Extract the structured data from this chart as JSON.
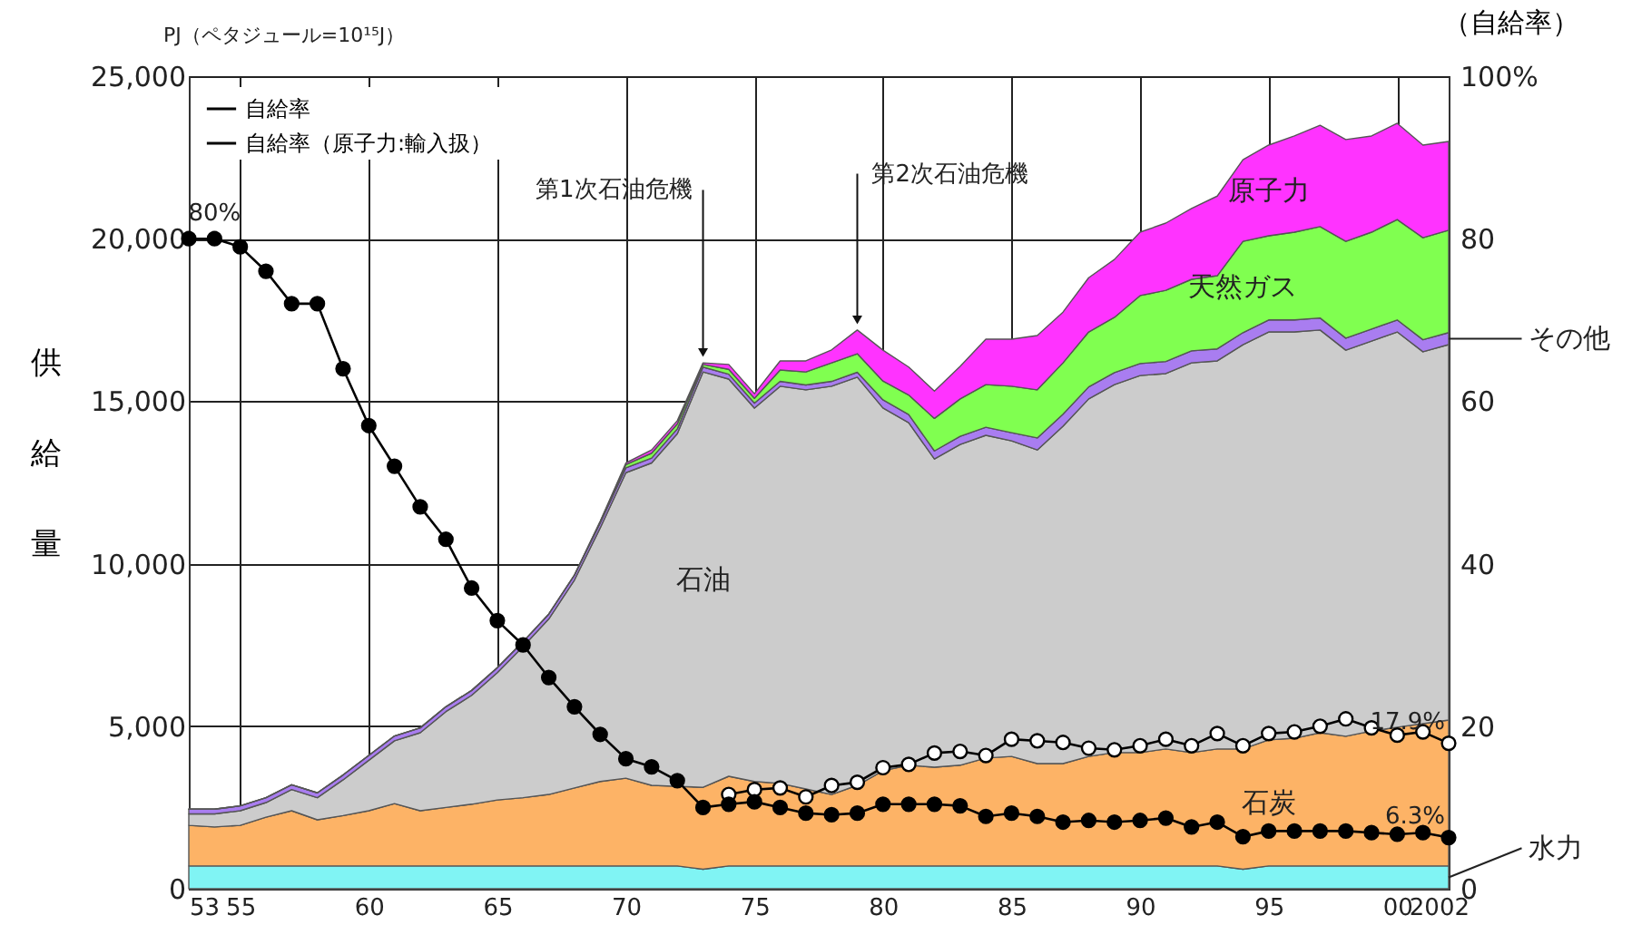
{
  "chart_data": {
    "type": "area",
    "stacked": true,
    "ylabel": "供給量",
    "y2label": "（自給率）",
    "annotations": [
      "PJ（ペタジュール=10¹⁵J）",
      {
        "text": "第1次石油危機",
        "x": 1973,
        "y": 16200
      },
      {
        "text": "第2次石油危機",
        "x": 1979,
        "y": 17200
      }
    ],
    "x": [
      1953,
      1954,
      1955,
      1956,
      1957,
      1958,
      1959,
      1960,
      1961,
      1962,
      1963,
      1964,
      1965,
      1966,
      1967,
      1968,
      1969,
      1970,
      1971,
      1972,
      1973,
      1974,
      1975,
      1976,
      1977,
      1978,
      1979,
      1980,
      1981,
      1982,
      1983,
      1984,
      1985,
      1986,
      1987,
      1988,
      1989,
      1990,
      1991,
      1992,
      1993,
      1994,
      1995,
      1996,
      1997,
      1998,
      1999,
      2000,
      2001,
      2002
    ],
    "xlim": [
      1953,
      2002
    ],
    "xticks": [
      {
        "value": 1953,
        "label": "53"
      },
      {
        "value": 1955,
        "label": "55"
      },
      {
        "value": 1960,
        "label": "60"
      },
      {
        "value": 1965,
        "label": "65"
      },
      {
        "value": 1970,
        "label": "70"
      },
      {
        "value": 1975,
        "label": "75"
      },
      {
        "value": 1980,
        "label": "80"
      },
      {
        "value": 1985,
        "label": "85"
      },
      {
        "value": 1990,
        "label": "90"
      },
      {
        "value": 1995,
        "label": "95"
      },
      {
        "value": 2000,
        "label": "00"
      },
      2002
    ],
    "ylim": [
      0,
      25000
    ],
    "yticks": [
      0,
      {
        "value": 5000,
        "label": "5,000"
      },
      {
        "value": 10000,
        "label": "10,000"
      },
      {
        "value": 15000,
        "label": "15,000"
      },
      {
        "value": 20000,
        "label": "20,000"
      },
      {
        "value": 25000,
        "label": "25,000"
      }
    ],
    "y2lim": [
      0,
      100
    ],
    "y2ticks": [
      0,
      20,
      40,
      60,
      80,
      {
        "value": 100,
        "label": "100%"
      }
    ],
    "grid": true,
    "legend": "top left",
    "series": [
      {
        "name": "水力",
        "color": "#80f4f4",
        "values": [
          700,
          700,
          700,
          700,
          700,
          700,
          700,
          700,
          700,
          700,
          700,
          700,
          700,
          700,
          700,
          700,
          700,
          700,
          700,
          700,
          600,
          700,
          700,
          700,
          700,
          700,
          700,
          700,
          700,
          700,
          700,
          700,
          700,
          700,
          700,
          700,
          700,
          700,
          700,
          700,
          700,
          600,
          700,
          700,
          700,
          700,
          700,
          700,
          700,
          700
        ]
      },
      {
        "name": "石炭",
        "color": "#fdb366",
        "values": [
          1250,
          1200,
          1250,
          1500,
          1700,
          1420,
          1550,
          1700,
          1920,
          1700,
          1800,
          1900,
          2030,
          2100,
          2200,
          2400,
          2600,
          2700,
          2480,
          2450,
          2520,
          2760,
          2600,
          2540,
          2370,
          2200,
          2480,
          2930,
          3100,
          3040,
          3100,
          3320,
          3370,
          3150,
          3150,
          3370,
          3490,
          3490,
          3600,
          3490,
          3600,
          3700,
          3880,
          3930,
          4100,
          3990,
          4150,
          4270,
          4380,
          4490
        ]
      },
      {
        "name": "石油",
        "color": "#cccccc",
        "values": [
          350,
          400,
          450,
          450,
          650,
          680,
          1100,
          1550,
          1930,
          2400,
          2950,
          3350,
          3920,
          4650,
          5400,
          6400,
          7800,
          9400,
          9920,
          10850,
          12780,
          12220,
          11490,
          12220,
          12280,
          12560,
          12560,
          11160,
          10540,
          9480,
          9870,
          9930,
          9710,
          9650,
          10380,
          11000,
          11320,
          11600,
          11550,
          11990,
          11940,
          12440,
          12550,
          12500,
          12390,
          11880,
          12000,
          12160,
          11440,
          11550
        ]
      },
      {
        "name": "その他",
        "color": "#a97df0",
        "values": [
          150,
          150,
          150,
          150,
          150,
          150,
          150,
          150,
          150,
          150,
          150,
          150,
          150,
          150,
          150,
          150,
          150,
          150,
          150,
          150,
          150,
          150,
          150,
          150,
          150,
          150,
          150,
          250,
          250,
          250,
          250,
          250,
          250,
          370,
          370,
          370,
          370,
          370,
          370,
          370,
          370,
          370,
          370,
          370,
          370,
          370,
          370,
          370,
          370,
          370
        ]
      },
      {
        "name": "天然ガス",
        "color": "#80ff50",
        "values": [
          0,
          0,
          0,
          0,
          0,
          0,
          0,
          0,
          0,
          0,
          0,
          0,
          0,
          0,
          0,
          0,
          50,
          100,
          150,
          150,
          80,
          150,
          150,
          350,
          400,
          570,
          570,
          580,
          600,
          1000,
          1150,
          1310,
          1430,
          1480,
          1580,
          1690,
          1700,
          2090,
          2190,
          2200,
          2250,
          2810,
          2590,
          2700,
          2810,
          2980,
          2980,
          3090,
          3140,
          3150
        ]
      },
      {
        "name": "原子力",
        "color": "#ff33ff",
        "values": [
          0,
          0,
          0,
          0,
          0,
          0,
          0,
          0,
          0,
          0,
          0,
          0,
          0,
          0,
          0,
          0,
          0,
          50,
          100,
          100,
          50,
          150,
          140,
          280,
          340,
          400,
          730,
          950,
          860,
          840,
          1000,
          1400,
          1450,
          1670,
          1560,
          1670,
          1780,
          1950,
          2070,
          2180,
          2450,
          2510,
          2790,
          2960,
          3120,
          3130,
          2960,
          2960,
          2850,
          2730
        ]
      },
      {
        "name": "自給率",
        "type": "line",
        "axis": "y2",
        "marker": "circle",
        "color": "#000000",
        "values": [
          null,
          null,
          null,
          null,
          null,
          null,
          null,
          null,
          null,
          null,
          null,
          null,
          null,
          null,
          null,
          null,
          null,
          null,
          null,
          null,
          null,
          11.6,
          12.2,
          12.4,
          11.3,
          12.7,
          13.1,
          14.9,
          15.3,
          16.7,
          16.9,
          16.4,
          18.4,
          18.2,
          18,
          17.3,
          17.1,
          17.6,
          18.4,
          17.6,
          19.1,
          17.6,
          19.1,
          19.3,
          20,
          20.9,
          19.8,
          18.9,
          19.3,
          17.9
        ],
        "value_labels": [
          null,
          null,
          null,
          null,
          null,
          null,
          null,
          null,
          null,
          null,
          null,
          null,
          null,
          null,
          null,
          null,
          null,
          null,
          null,
          null,
          null,
          null,
          null,
          null,
          null,
          null,
          null,
          null,
          null,
          null,
          null,
          null,
          null,
          null,
          null,
          null,
          null,
          null,
          null,
          null,
          null,
          null,
          null,
          null,
          null,
          null,
          null,
          null,
          null,
          "17.9%"
        ]
      },
      {
        "name": "自給率（原子力:輸入扱）",
        "type": "line",
        "axis": "y2",
        "marker": "circle",
        "color": "#000000",
        "values": [
          80,
          80,
          79,
          76,
          72,
          72,
          64,
          57,
          52,
          47,
          43,
          37,
          33,
          30,
          26,
          22.4,
          19,
          16,
          15,
          13.3,
          10,
          10.4,
          10.7,
          10,
          9.3,
          9.1,
          9.3,
          10.4,
          10.4,
          10.4,
          10.2,
          8.9,
          9.3,
          8.9,
          8.2,
          8.4,
          8.2,
          8.4,
          8.7,
          7.6,
          8.2,
          6.4,
          7.1,
          7.1,
          7.1,
          7.1,
          6.9,
          6.7,
          6.9,
          6.3
        ],
        "value_labels": [
          null,
          "80%",
          null,
          null,
          null,
          null,
          null,
          null,
          null,
          null,
          null,
          null,
          null,
          null,
          null,
          null,
          null,
          null,
          null,
          null,
          null,
          null,
          null,
          null,
          null,
          null,
          null,
          null,
          null,
          null,
          null,
          null,
          null,
          null,
          null,
          null,
          null,
          null,
          null,
          null,
          null,
          null,
          null,
          null,
          null,
          null,
          null,
          null,
          null,
          "6.3%"
        ]
      }
    ]
  }
}
